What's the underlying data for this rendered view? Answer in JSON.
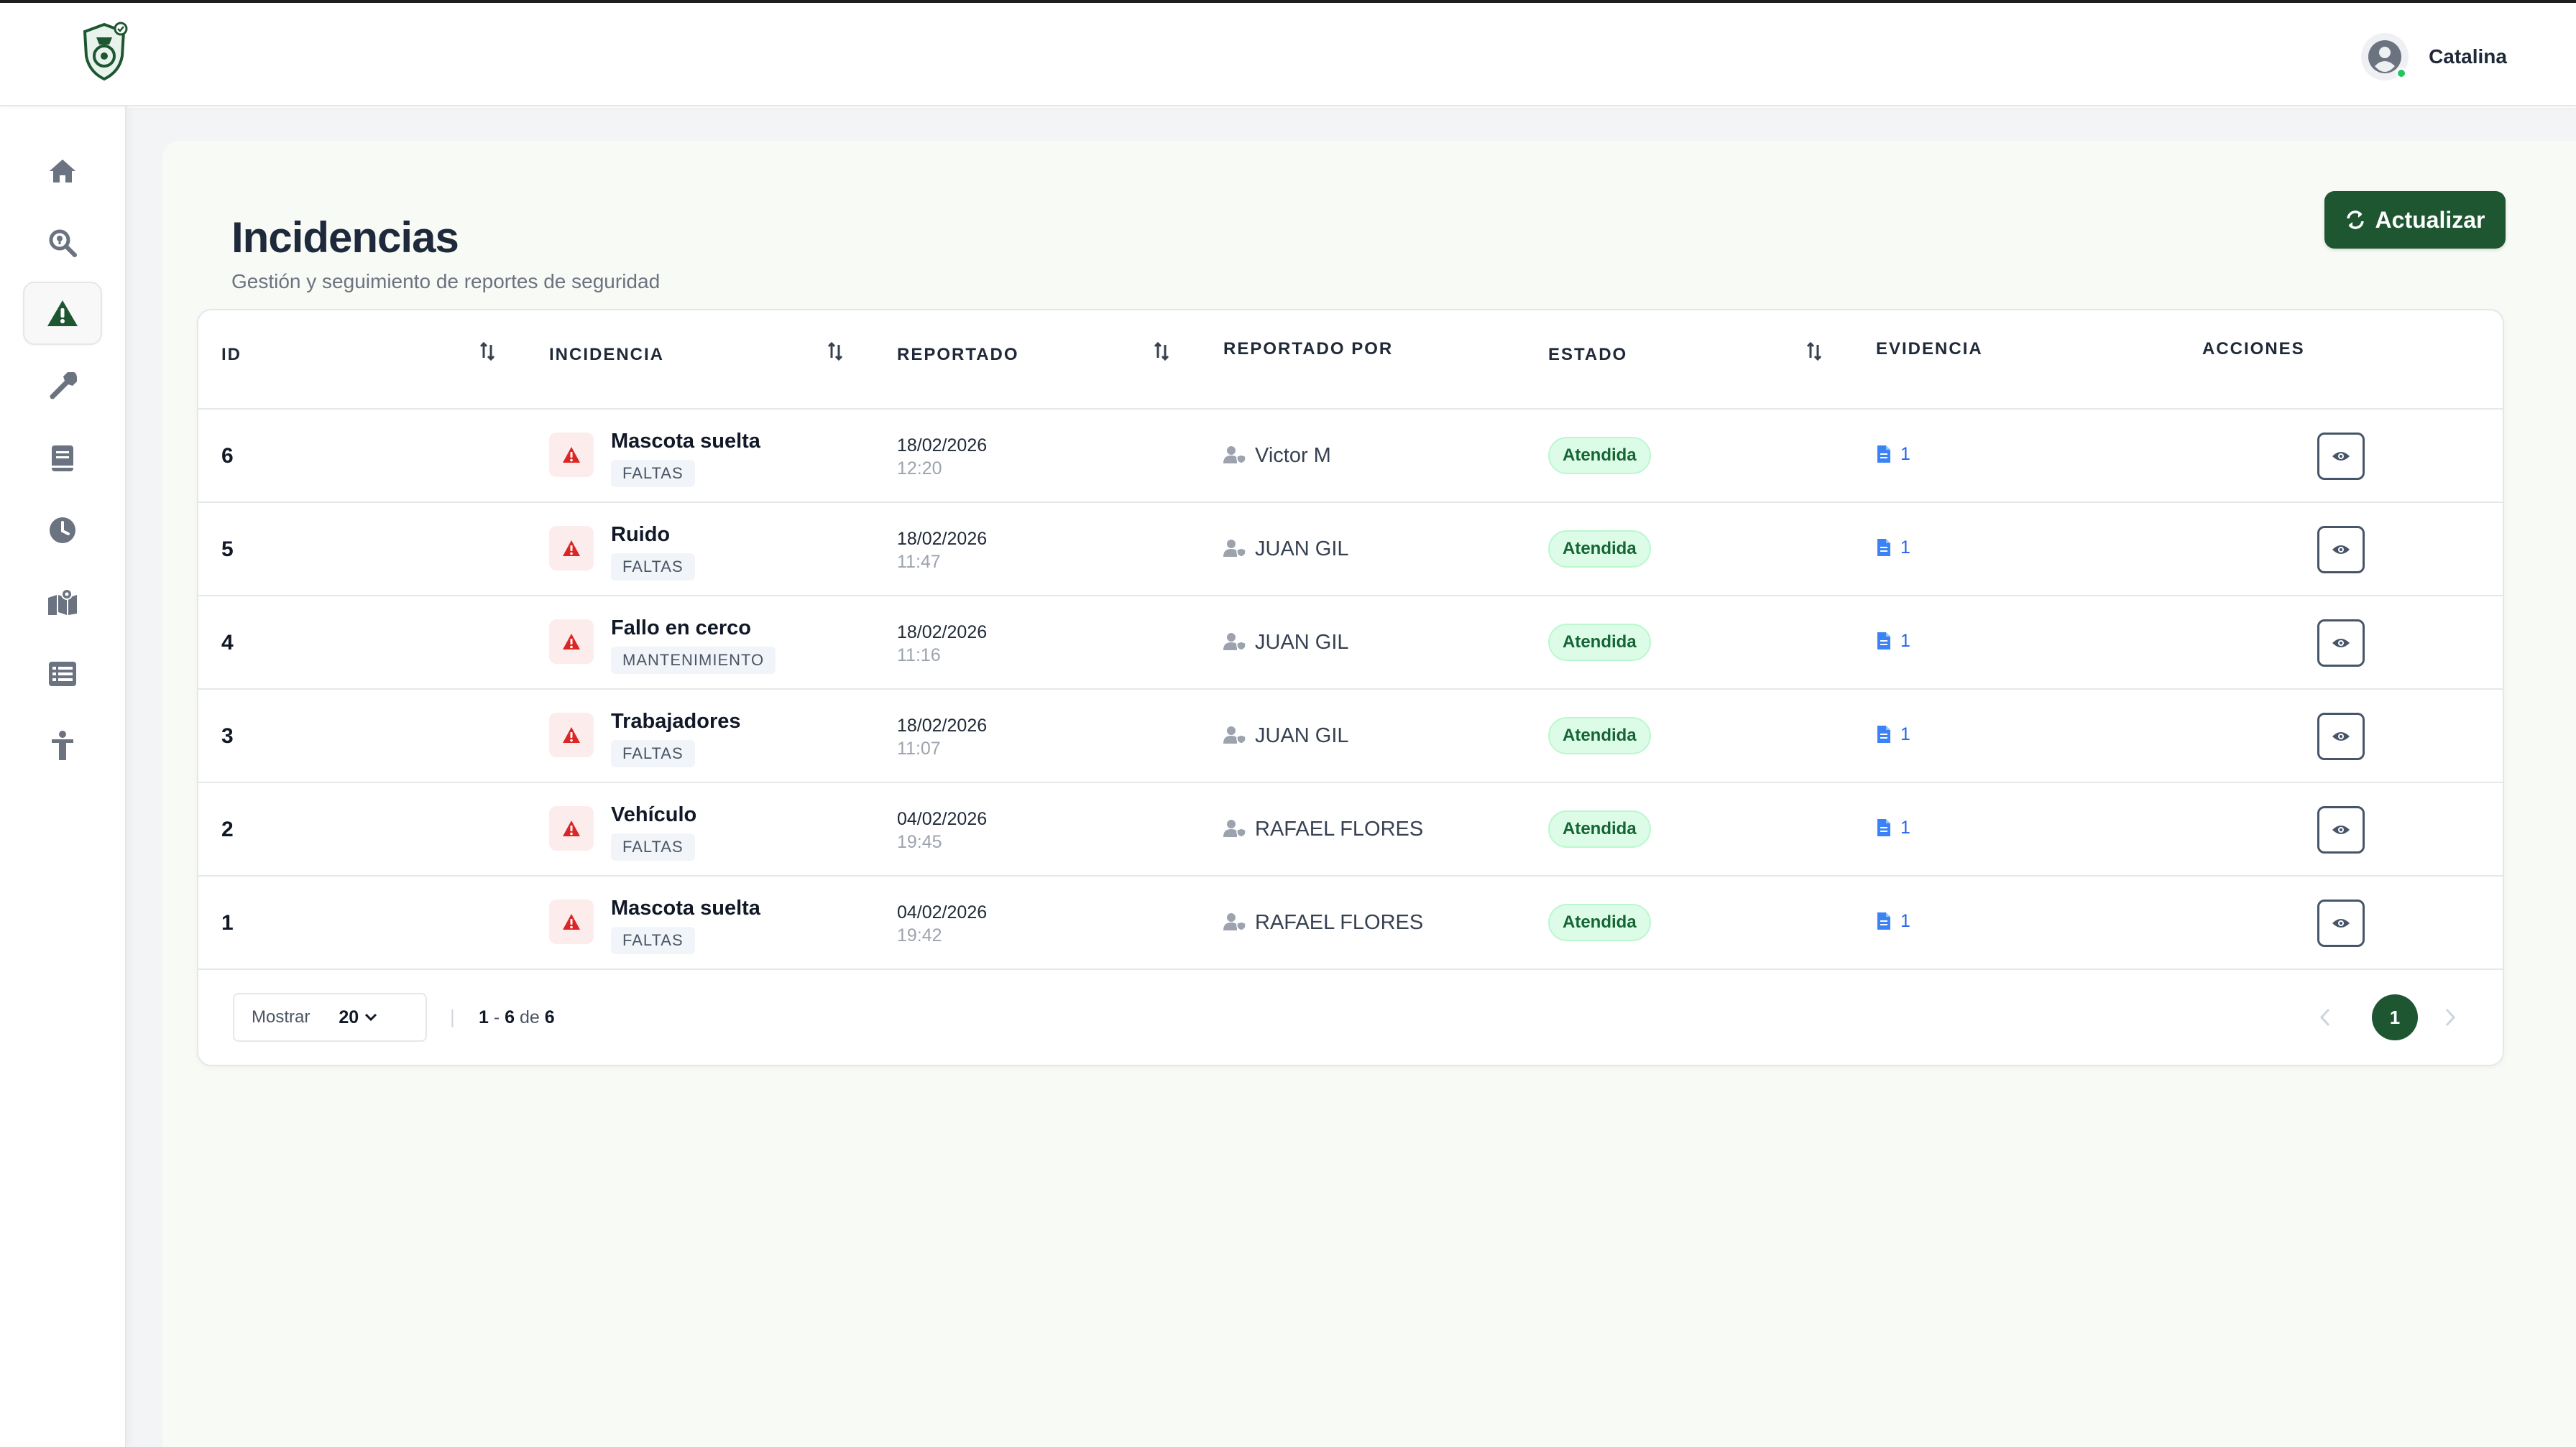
{
  "header": {
    "user_name": "Catalina"
  },
  "sidebar": {
    "items": [
      {
        "name": "home",
        "icon": "home-icon"
      },
      {
        "name": "search",
        "icon": "search-location-icon"
      },
      {
        "name": "incidents",
        "icon": "warning-icon",
        "active": true
      },
      {
        "name": "maintenance",
        "icon": "wrench-icon"
      },
      {
        "name": "logbook",
        "icon": "book-icon"
      },
      {
        "name": "history",
        "icon": "clock-icon"
      },
      {
        "name": "map",
        "icon": "map-location-icon"
      },
      {
        "name": "list",
        "icon": "list-icon"
      },
      {
        "name": "guard",
        "icon": "person-icon"
      }
    ]
  },
  "page": {
    "title": "Incidencias",
    "subtitle": "Gestión y seguimiento de reportes de seguridad",
    "refresh_label": "Actualizar"
  },
  "table": {
    "columns": [
      "ID",
      "INCIDENCIA",
      "REPORTADO",
      "REPORTADO POR",
      "ESTADO",
      "EVIDENCIA",
      "ACCIONES"
    ],
    "rows": [
      {
        "id": "6",
        "incident": "Mascota suelta",
        "category": "FALTAS",
        "date": "18/02/2026",
        "time": "12:20",
        "reported_by": "Victor M",
        "status": "Atendida",
        "evidence": "1"
      },
      {
        "id": "5",
        "incident": "Ruido",
        "category": "FALTAS",
        "date": "18/02/2026",
        "time": "11:47",
        "reported_by": "JUAN GIL",
        "status": "Atendida",
        "evidence": "1"
      },
      {
        "id": "4",
        "incident": "Fallo en cerco",
        "category": "MANTENIMIENTO",
        "date": "18/02/2026",
        "time": "11:16",
        "reported_by": "JUAN GIL",
        "status": "Atendida",
        "evidence": "1"
      },
      {
        "id": "3",
        "incident": "Trabajadores",
        "category": "FALTAS",
        "date": "18/02/2026",
        "time": "11:07",
        "reported_by": "JUAN GIL",
        "status": "Atendida",
        "evidence": "1"
      },
      {
        "id": "2",
        "incident": "Vehículo",
        "category": "FALTAS",
        "date": "04/02/2026",
        "time": "19:45",
        "reported_by": "RAFAEL FLORES",
        "status": "Atendida",
        "evidence": "1"
      },
      {
        "id": "1",
        "incident": "Mascota suelta",
        "category": "FALTAS",
        "date": "04/02/2026",
        "time": "19:42",
        "reported_by": "RAFAEL FLORES",
        "status": "Atendida",
        "evidence": "1"
      }
    ]
  },
  "pagination": {
    "show_label": "Mostrar",
    "page_size": "20",
    "separator": "|",
    "range_start": "1",
    "range_dash": "-",
    "range_end": "6",
    "range_of": "de",
    "total": "6",
    "current_page": "1"
  },
  "colors": {
    "brand_green": "#1e5631",
    "status_bg": "#dcfce7",
    "status_text": "#166534",
    "danger": "#dc2626"
  }
}
